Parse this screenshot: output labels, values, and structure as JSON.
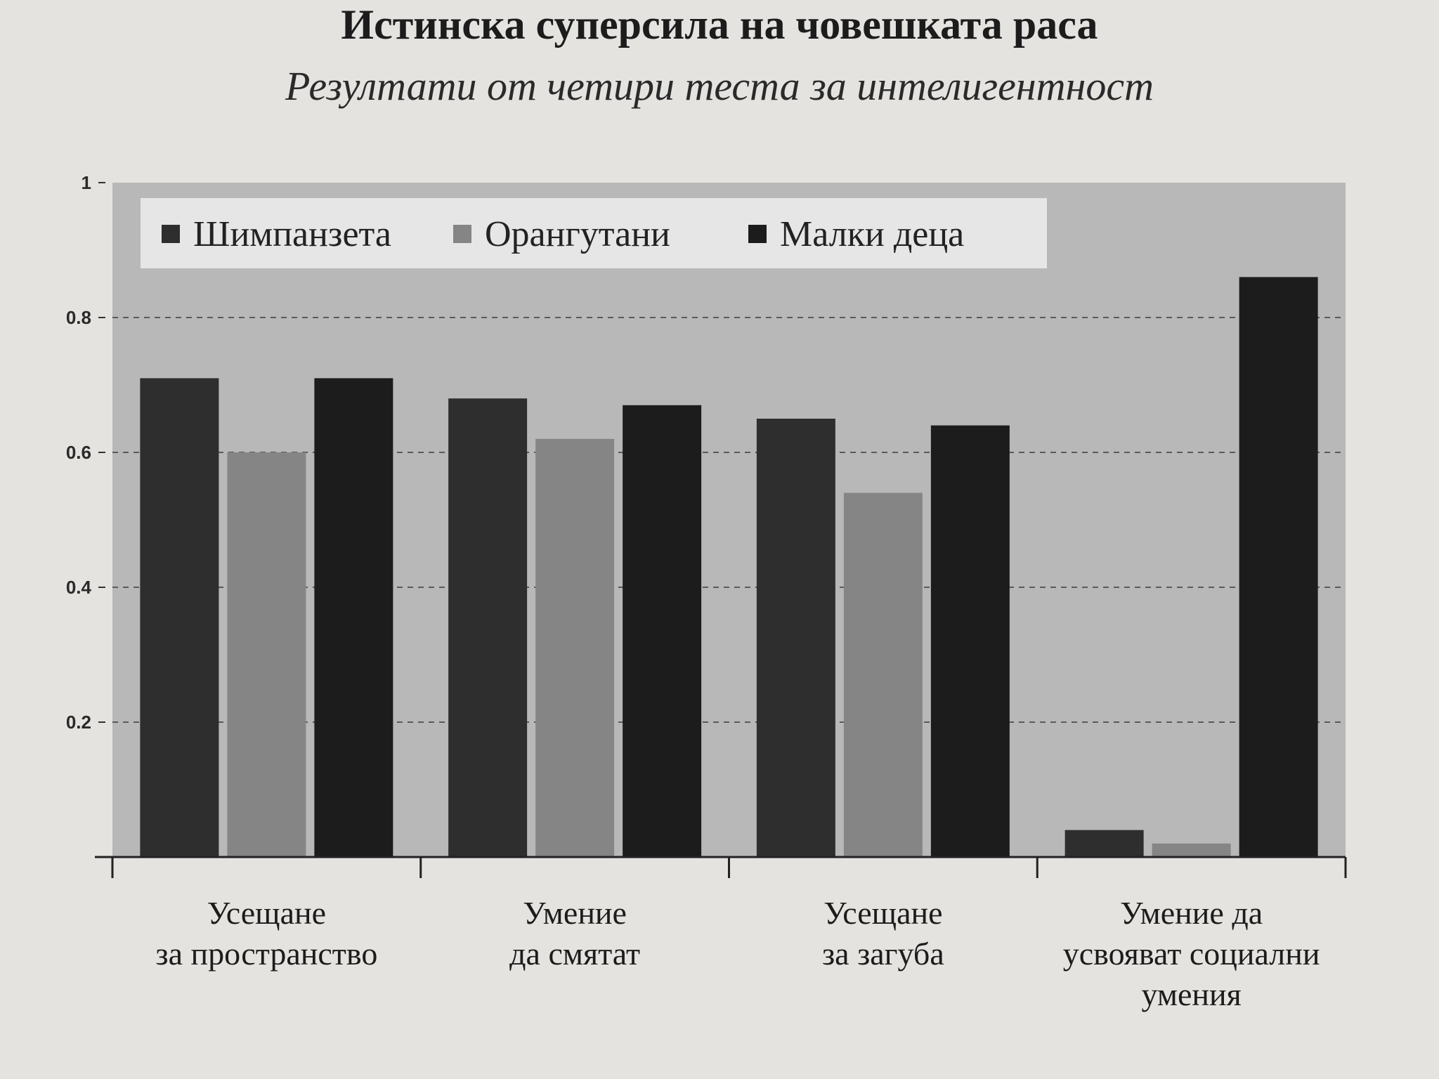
{
  "chart_data": {
    "type": "bar",
    "title": "Истинска суперсила на човешката раса",
    "subtitle": "Резултати от четири теста за интелигентност",
    "xlabel": "",
    "ylabel": "",
    "ylim": [
      0,
      1
    ],
    "yticks": [
      "0.2",
      "0.4",
      "0.6",
      "0.8",
      "1"
    ],
    "grid": "dashed horizontal",
    "legend_position": "top-left",
    "categories": [
      [
        "Усещане",
        "за пространство"
      ],
      [
        "Умение",
        "да смятат"
      ],
      [
        "Усещане",
        "за загуба"
      ],
      [
        "Умение да",
        "усвояват социални",
        "умения"
      ]
    ],
    "series": [
      {
        "name": "Шимпанзета",
        "color": "#2e2e2e",
        "values": [
          0.71,
          0.68,
          0.65,
          0.04
        ]
      },
      {
        "name": "Орангутани",
        "color": "#858585",
        "values": [
          0.6,
          0.62,
          0.54,
          0.02
        ]
      },
      {
        "name": "Малки деца",
        "color": "#1c1c1c",
        "values": [
          0.71,
          0.67,
          0.64,
          0.86
        ]
      }
    ],
    "colors": {
      "plot_bg": "#b8b8b8",
      "legend_bg": "#e6e6e6",
      "grid": "#5a5a5a"
    }
  }
}
